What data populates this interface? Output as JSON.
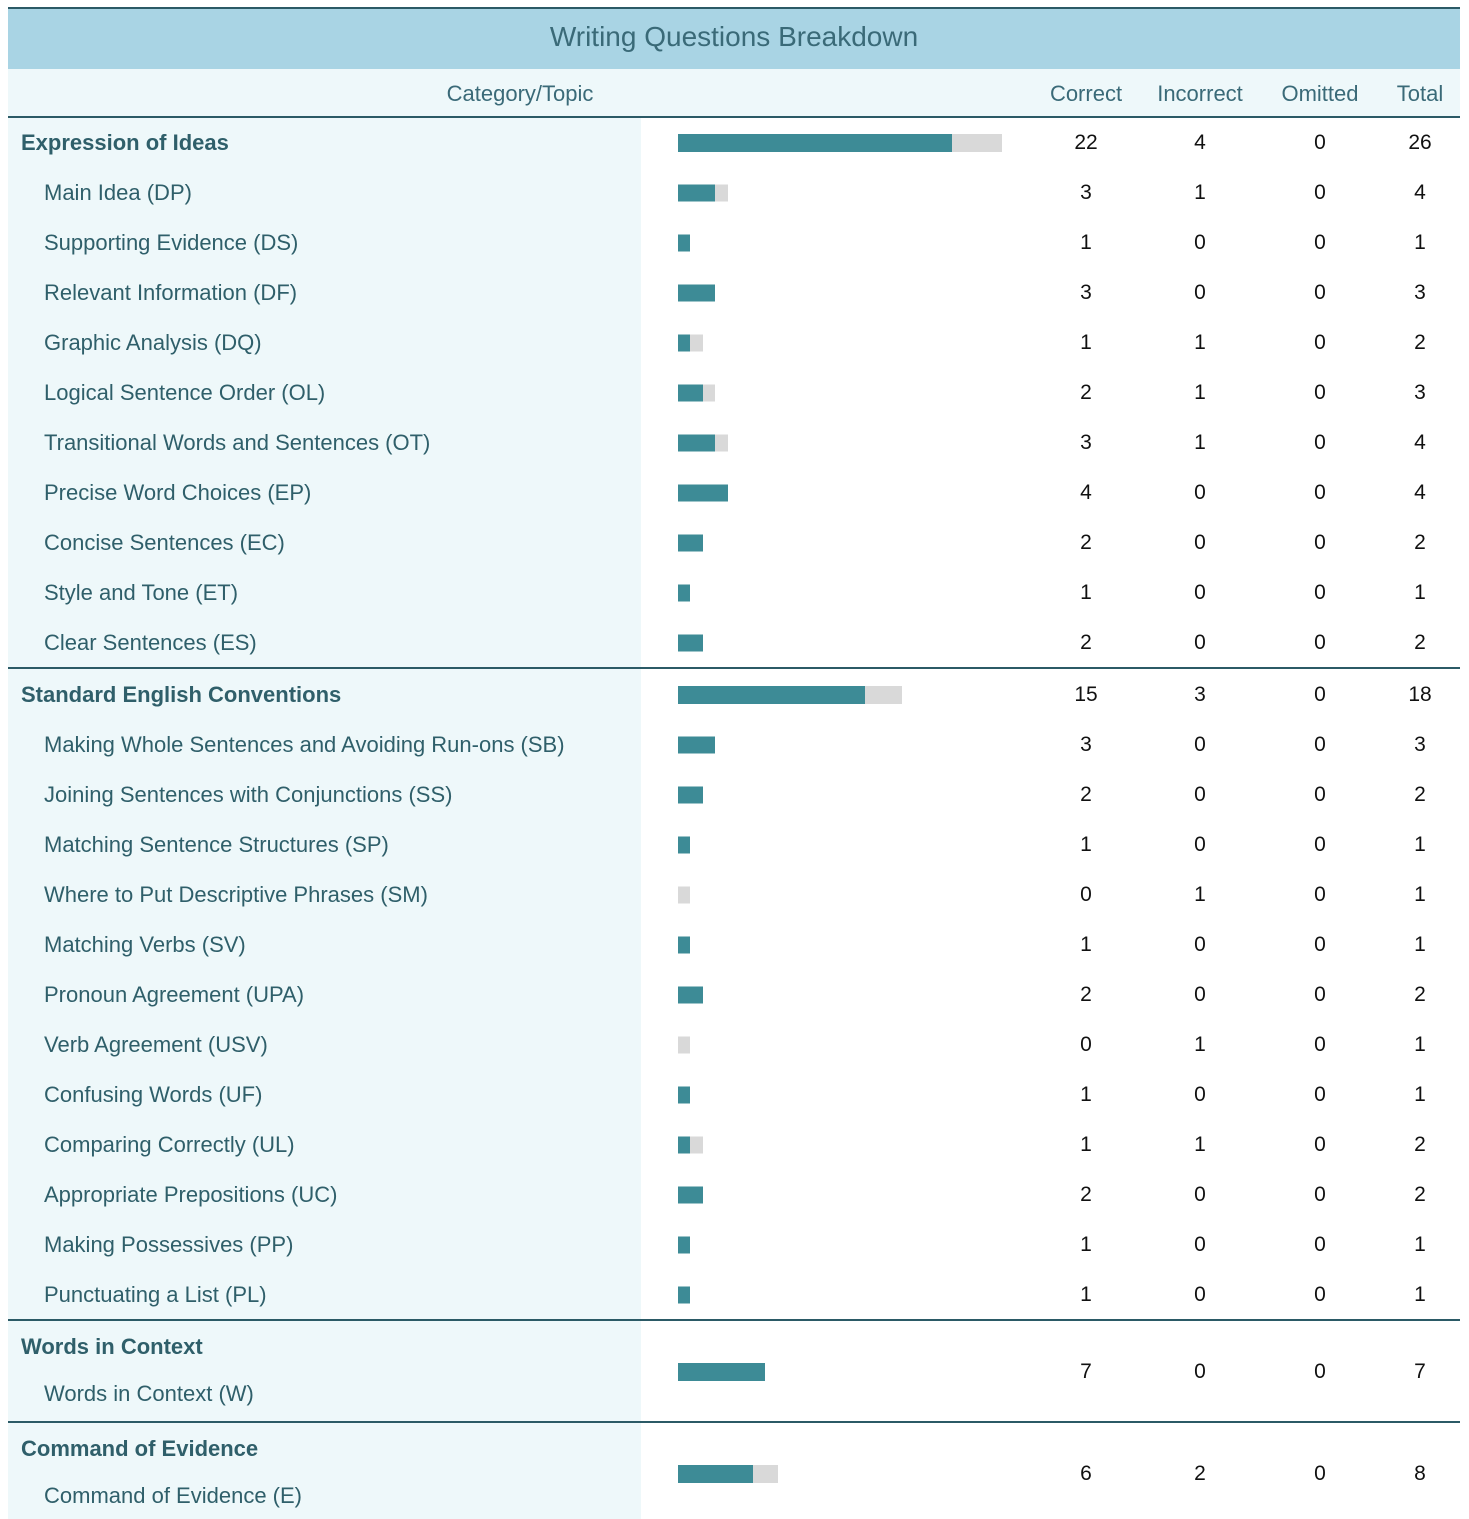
{
  "header": {
    "title": "Writing Questions Breakdown",
    "columns": [
      "Category/Topic",
      "Correct",
      "Incorrect",
      "Omitted",
      "Total"
    ]
  },
  "sections": [
    {
      "name": "Expression of Ideas",
      "correct": 22,
      "incorrect": 4,
      "omitted": 0,
      "total": 26,
      "topics": [
        {
          "name": "Main Idea (DP)",
          "correct": 3,
          "incorrect": 1,
          "omitted": 0,
          "total": 4
        },
        {
          "name": "Supporting Evidence (DS)",
          "correct": 1,
          "incorrect": 0,
          "omitted": 0,
          "total": 1
        },
        {
          "name": "Relevant Information (DF)",
          "correct": 3,
          "incorrect": 0,
          "omitted": 0,
          "total": 3
        },
        {
          "name": "Graphic Analysis (DQ)",
          "correct": 1,
          "incorrect": 1,
          "omitted": 0,
          "total": 2
        },
        {
          "name": "Logical Sentence Order (OL)",
          "correct": 2,
          "incorrect": 1,
          "omitted": 0,
          "total": 3
        },
        {
          "name": "Transitional Words and Sentences (OT)",
          "correct": 3,
          "incorrect": 1,
          "omitted": 0,
          "total": 4
        },
        {
          "name": "Precise Word Choices (EP)",
          "correct": 4,
          "incorrect": 0,
          "omitted": 0,
          "total": 4
        },
        {
          "name": "Concise Sentences (EC)",
          "correct": 2,
          "incorrect": 0,
          "omitted": 0,
          "total": 2
        },
        {
          "name": "Style and Tone (ET)",
          "correct": 1,
          "incorrect": 0,
          "omitted": 0,
          "total": 1
        },
        {
          "name": "Clear Sentences (ES)",
          "correct": 2,
          "incorrect": 0,
          "omitted": 0,
          "total": 2
        }
      ]
    },
    {
      "name": "Standard English Conventions",
      "correct": 15,
      "incorrect": 3,
      "omitted": 0,
      "total": 18,
      "topics": [
        {
          "name": "Making Whole Sentences and Avoiding Run-ons (SB)",
          "correct": 3,
          "incorrect": 0,
          "omitted": 0,
          "total": 3
        },
        {
          "name": "Joining Sentences with Conjunctions (SS)",
          "correct": 2,
          "incorrect": 0,
          "omitted": 0,
          "total": 2
        },
        {
          "name": "Matching Sentence Structures (SP)",
          "correct": 1,
          "incorrect": 0,
          "omitted": 0,
          "total": 1
        },
        {
          "name": "Where to Put Descriptive Phrases (SM)",
          "correct": 0,
          "incorrect": 1,
          "omitted": 0,
          "total": 1
        },
        {
          "name": "Matching Verbs (SV)",
          "correct": 1,
          "incorrect": 0,
          "omitted": 0,
          "total": 1
        },
        {
          "name": "Pronoun Agreement (UPA)",
          "correct": 2,
          "incorrect": 0,
          "omitted": 0,
          "total": 2
        },
        {
          "name": "Verb Agreement (USV)",
          "correct": 0,
          "incorrect": 1,
          "omitted": 0,
          "total": 1
        },
        {
          "name": "Confusing Words (UF)",
          "correct": 1,
          "incorrect": 0,
          "omitted": 0,
          "total": 1
        },
        {
          "name": "Comparing Correctly (UL)",
          "correct": 1,
          "incorrect": 1,
          "omitted": 0,
          "total": 2
        },
        {
          "name": "Appropriate Prepositions (UC)",
          "correct": 2,
          "incorrect": 0,
          "omitted": 0,
          "total": 2
        },
        {
          "name": "Making Possessives (PP)",
          "correct": 1,
          "incorrect": 0,
          "omitted": 0,
          "total": 1
        },
        {
          "name": "Punctuating a List (PL)",
          "correct": 1,
          "incorrect": 0,
          "omitted": 0,
          "total": 1
        }
      ]
    },
    {
      "name": "Words in Context",
      "correct": 7,
      "incorrect": 0,
      "omitted": 0,
      "total": 7,
      "topics": [
        {
          "name": "Words in Context (W)"
        }
      ]
    },
    {
      "name": "Command of Evidence",
      "correct": 6,
      "incorrect": 2,
      "omitted": 0,
      "total": 8,
      "topics": [
        {
          "name": "Command of Evidence (E)"
        }
      ]
    }
  ]
}
